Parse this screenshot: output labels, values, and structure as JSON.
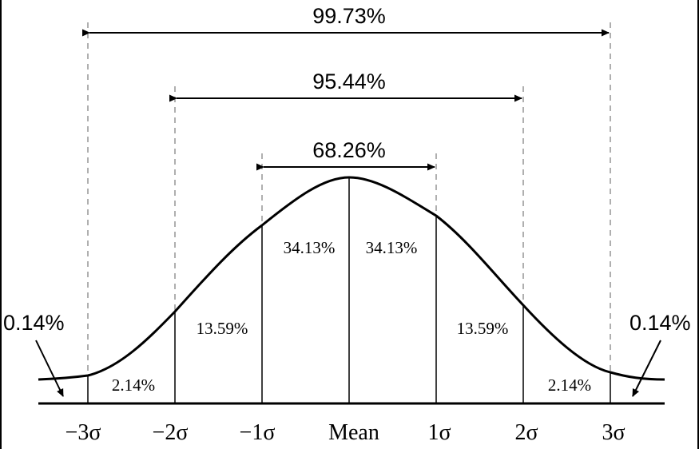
{
  "spans": [
    {
      "name": "three-sigma",
      "label": "99.73%"
    },
    {
      "name": "two-sigma",
      "label": "95.44%"
    },
    {
      "name": "one-sigma",
      "label": "68.26%"
    }
  ],
  "regions": {
    "left_1": "34.13%",
    "right_1": "34.13%",
    "left_2": "13.59%",
    "right_2": "13.59%",
    "left_3": "2.14%",
    "right_3": "2.14%"
  },
  "tails": {
    "left": "0.14%",
    "right": "0.14%"
  },
  "axis": {
    "ticks": [
      "−3σ",
      "−2σ",
      "−1σ",
      "Mean",
      "1σ",
      "2σ",
      "3σ"
    ]
  }
}
